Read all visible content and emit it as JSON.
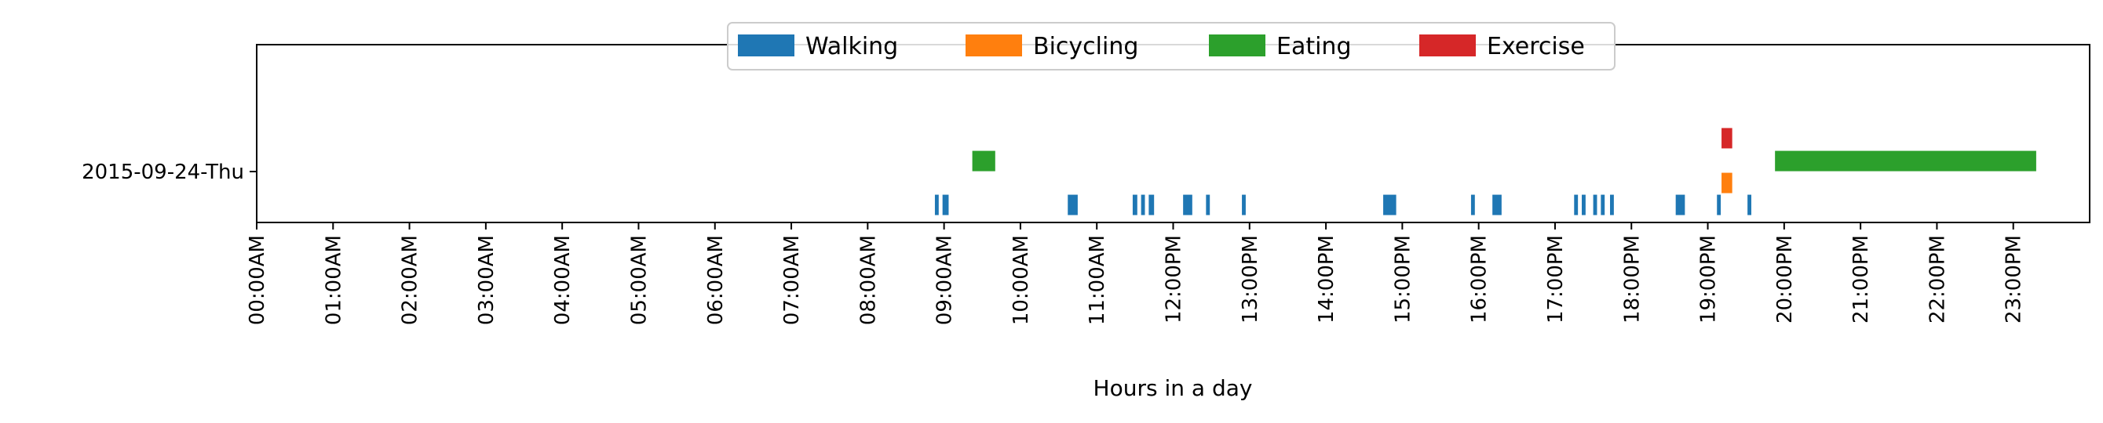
{
  "chart_data": {
    "type": "timeline",
    "title": "",
    "xlabel": "Hours in a day",
    "ylabel": "",
    "xlim": [
      0,
      24
    ],
    "grid": false,
    "legend_placement": "top-center",
    "categories": [
      "2015-09-24-Thu"
    ],
    "x_tick_labels": [
      "00:00AM",
      "01:00AM",
      "02:00AM",
      "03:00AM",
      "04:00AM",
      "05:00AM",
      "06:00AM",
      "07:00AM",
      "08:00AM",
      "09:00AM",
      "10:00AM",
      "11:00AM",
      "12:00PM",
      "13:00PM",
      "14:00PM",
      "15:00PM",
      "16:00PM",
      "17:00PM",
      "18:00PM",
      "19:00PM",
      "20:00PM",
      "21:00PM",
      "22:00PM",
      "23:00PM"
    ],
    "series": [
      {
        "name": "Walking",
        "color": "#1f77b4",
        "lane_offset": -0.38,
        "intervals": [
          [
            8.88,
            8.93
          ],
          [
            8.98,
            9.06
          ],
          [
            10.62,
            10.75
          ],
          [
            11.47,
            11.53
          ],
          [
            11.58,
            11.63
          ],
          [
            11.68,
            11.75
          ],
          [
            12.13,
            12.25
          ],
          [
            12.43,
            12.48
          ],
          [
            12.9,
            12.95
          ],
          [
            14.75,
            14.92
          ],
          [
            15.9,
            15.95
          ],
          [
            16.18,
            16.3
          ],
          [
            17.25,
            17.3
          ],
          [
            17.35,
            17.4
          ],
          [
            17.5,
            17.55
          ],
          [
            17.6,
            17.65
          ],
          [
            17.72,
            17.77
          ],
          [
            18.58,
            18.7
          ],
          [
            19.12,
            19.17
          ],
          [
            19.52,
            19.57
          ]
        ]
      },
      {
        "name": "Bicycling",
        "color": "#ff7f0e",
        "lane_offset": -0.13,
        "intervals": [
          [
            19.18,
            19.32
          ]
        ]
      },
      {
        "name": "Eating",
        "color": "#2ca02c",
        "lane_offset": 0.12,
        "intervals": [
          [
            9.37,
            9.67
          ],
          [
            19.88,
            23.3
          ]
        ]
      },
      {
        "name": "Exercise",
        "color": "#d62728",
        "lane_offset": 0.38,
        "intervals": [
          [
            19.18,
            19.32
          ]
        ]
      }
    ]
  }
}
